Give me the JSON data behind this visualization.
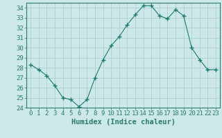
{
  "x": [
    0,
    1,
    2,
    3,
    4,
    5,
    6,
    7,
    8,
    9,
    10,
    11,
    12,
    13,
    14,
    15,
    16,
    17,
    18,
    19,
    20,
    21,
    22,
    23
  ],
  "y": [
    28.3,
    27.8,
    27.2,
    26.2,
    25.0,
    24.8,
    24.1,
    24.8,
    27.0,
    28.8,
    30.2,
    31.1,
    32.3,
    33.3,
    34.2,
    34.2,
    33.2,
    32.9,
    33.8,
    33.2,
    30.0,
    28.8,
    27.8,
    27.8
  ],
  "line_color": "#1a7a6e",
  "marker": "+",
  "marker_size": 4,
  "bg_color": "#cce8e8",
  "grid_color": "#aacccc",
  "xlabel": "Humidex (Indice chaleur)",
  "xlim": [
    -0.5,
    23.5
  ],
  "ylim": [
    24,
    34.5
  ],
  "yticks": [
    24,
    25,
    26,
    27,
    28,
    29,
    30,
    31,
    32,
    33,
    34
  ],
  "xticks": [
    0,
    1,
    2,
    3,
    4,
    5,
    6,
    7,
    8,
    9,
    10,
    11,
    12,
    13,
    14,
    15,
    16,
    17,
    18,
    19,
    20,
    21,
    22,
    23
  ],
  "xlabel_fontsize": 7.5,
  "tick_fontsize": 6.5,
  "line_color2": "#1a7a6e",
  "spine_color": "#2a7a6e",
  "linewidth": 0.8,
  "marker_color": "#1a7a6e"
}
